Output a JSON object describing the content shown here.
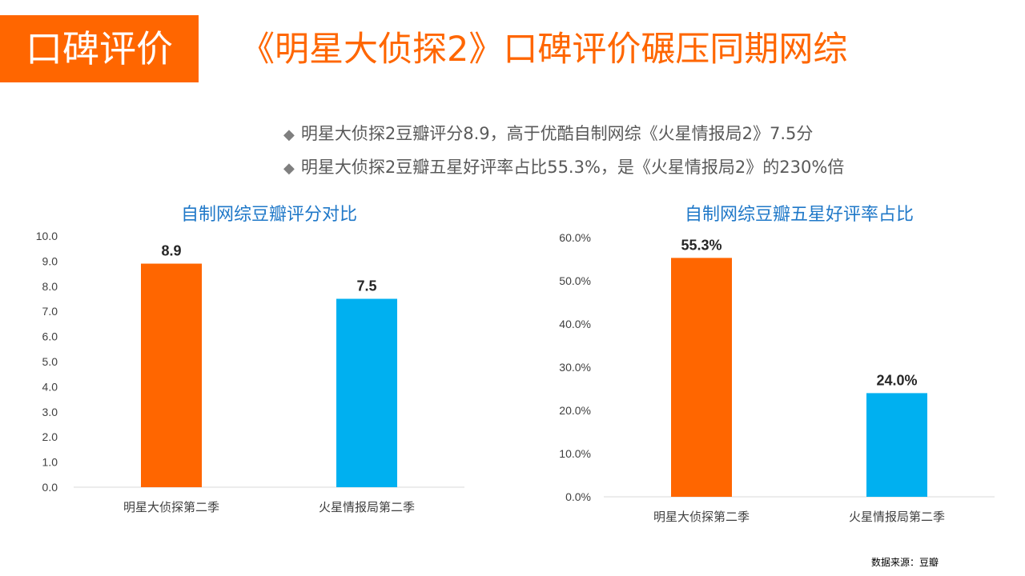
{
  "header": {
    "tag": "口碑评价",
    "title": "《明星大侦探2》口碑评价碾压同期网综"
  },
  "bullets": [
    "明星大侦探2豆瓣评分8.9，高于优酷自制网综《火星情报局2》7.5分",
    "明星大侦探2豆瓣五星好评率占比55.3%，是《火星情报局2》的230%倍"
  ],
  "colors": {
    "accent": "#FF6600",
    "secondary": "#00B0F0",
    "title_blue": "#1F78C8",
    "text_gray": "#595959"
  },
  "chart_data": [
    {
      "type": "bar",
      "title": "自制网综豆瓣评分对比",
      "categories": [
        "明星大侦探第二季",
        "火星情报局第二季"
      ],
      "values": [
        8.9,
        7.5
      ],
      "value_labels": [
        "8.9",
        "7.5"
      ],
      "bar_colors": [
        "#FF6600",
        "#00B0F0"
      ],
      "ylim": [
        0,
        10
      ],
      "yticks": [
        "0.0",
        "1.0",
        "2.0",
        "3.0",
        "4.0",
        "5.0",
        "6.0",
        "7.0",
        "8.0",
        "9.0",
        "10.0"
      ],
      "grid": false,
      "legend": "none"
    },
    {
      "type": "bar",
      "title": "自制网综豆瓣五星好评率占比",
      "categories": [
        "明星大侦探第二季",
        "火星情报局第二季"
      ],
      "values": [
        55.3,
        24.0
      ],
      "value_labels": [
        "55.3%",
        "24.0%"
      ],
      "bar_colors": [
        "#FF6600",
        "#00B0F0"
      ],
      "ylim": [
        0,
        60
      ],
      "yticks": [
        "0.0%",
        "10.0%",
        "20.0%",
        "30.0%",
        "40.0%",
        "50.0%",
        "60.0%"
      ],
      "grid": false,
      "legend": "none"
    }
  ],
  "footer": {
    "source": "数据来源：豆瓣"
  }
}
